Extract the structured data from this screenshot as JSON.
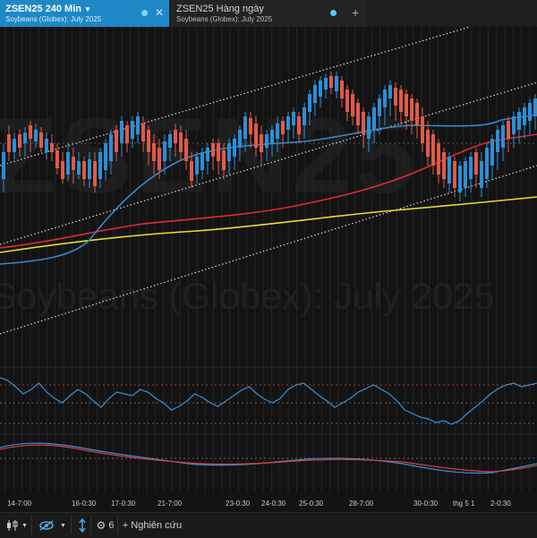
{
  "tabs": [
    {
      "title": "ZSEN25 240 Min",
      "subtitle": "Soybeans (Globex): July 2025",
      "active": true
    },
    {
      "title": "ZSEN25 Hàng ngày",
      "subtitle": "Soybeans (Globex): July 2025",
      "active": false
    }
  ],
  "watermark": {
    "symbol": "ZSEN25",
    "name": "Soybeans (Globex): July 2025"
  },
  "xaxis_labels": [
    "14-7:00",
    "16-0:30",
    "17-0:30",
    "21-7:00",
    "23-0:30",
    "24-0:30",
    "25-0:30",
    "28-7:00",
    "30-0:30",
    "thg 5 1",
    "2-0:30"
  ],
  "toolbar": {
    "indicator_count": "6",
    "research_label": "Nghiên cứu"
  },
  "icons": {
    "tab_dropdown": "chevron-down-icon",
    "tab_status": "status-dot-icon",
    "tab_close": "close-icon",
    "add_tab": "plus-icon",
    "chart_type": "candles-icon",
    "visibility": "eye-off-icon",
    "scale": "arrows-vertical-icon",
    "settings": "gear-icon",
    "research": "plus-icon"
  },
  "colors": {
    "tab_active": "#1e88c7",
    "candle_up": "#2b8fd6",
    "candle_down": "#e05a4a",
    "ma_red": "#e02a34",
    "ma_blue": "#3a86c8",
    "ma_yellow": "#e6dc2e"
  }
}
